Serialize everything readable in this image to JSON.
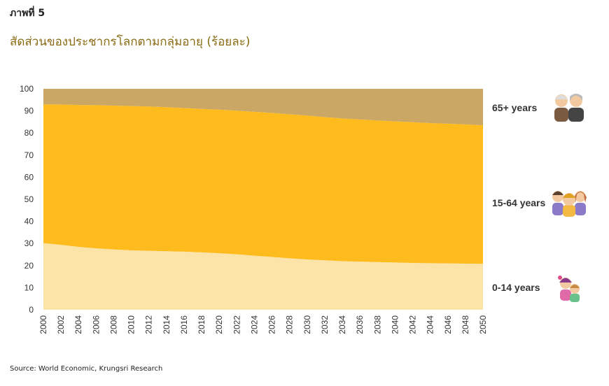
{
  "header": {
    "figure_label": "ภาพที่ 5",
    "title": "สัดส่วนของประชากรโลกตามกลุ่มอายุ (ร้อยละ)"
  },
  "source": "Source: World Economic, Krungsri Research",
  "chart_data": {
    "type": "area",
    "stacked": true,
    "x": [
      2000,
      2002,
      2004,
      2006,
      2008,
      2010,
      2012,
      2014,
      2016,
      2018,
      2020,
      2022,
      2024,
      2026,
      2028,
      2030,
      2032,
      2034,
      2036,
      2038,
      2040,
      2042,
      2044,
      2046,
      2048,
      2050
    ],
    "ylim": [
      0,
      100
    ],
    "yticks": [
      0,
      10,
      20,
      30,
      40,
      50,
      60,
      70,
      80,
      90,
      100
    ],
    "series": [
      {
        "name": "0-14 years",
        "color": "#fce4a8",
        "values": [
          30.2,
          29.4,
          28.5,
          27.8,
          27.3,
          26.9,
          26.7,
          26.5,
          26.3,
          26.0,
          25.6,
          25.1,
          24.5,
          23.9,
          23.3,
          22.8,
          22.4,
          22.0,
          21.8,
          21.6,
          21.4,
          21.2,
          21.1,
          21.0,
          20.9,
          20.8
        ]
      },
      {
        "name": "15-64 years",
        "color": "#fdbb1e",
        "values": [
          62.8,
          63.5,
          64.2,
          64.8,
          65.1,
          65.3,
          65.3,
          65.2,
          65.0,
          64.9,
          65.0,
          65.0,
          65.1,
          65.2,
          65.2,
          65.1,
          64.8,
          64.6,
          64.3,
          64.1,
          63.9,
          63.7,
          63.4,
          63.2,
          63.0,
          62.7
        ]
      },
      {
        "name": "65+ years",
        "color": "#cba766",
        "values": [
          7.0,
          7.1,
          7.3,
          7.4,
          7.6,
          7.8,
          8.0,
          8.3,
          8.7,
          9.1,
          9.4,
          9.9,
          10.4,
          10.9,
          11.5,
          12.1,
          12.8,
          13.4,
          13.9,
          14.3,
          14.7,
          15.1,
          15.5,
          15.8,
          16.1,
          16.5
        ]
      }
    ],
    "legend": [
      {
        "label": "65+ years",
        "icon": "elderly-couple-icon"
      },
      {
        "label": "15-64 years",
        "icon": "adult-group-icon"
      },
      {
        "label": "0-14 years",
        "icon": "children-icon"
      }
    ],
    "legend_placement": "right"
  }
}
